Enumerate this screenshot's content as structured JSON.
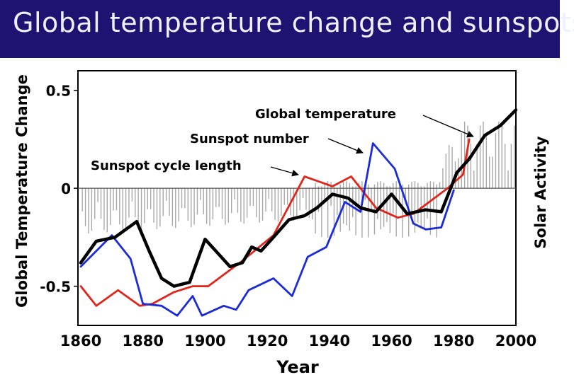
{
  "page": {
    "title": "Global temperature change and sunspots"
  },
  "chart_data": {
    "type": "line",
    "title": "Global temperature change and sunspots",
    "xlabel": "Year",
    "ylabel": "Global Temperature Change",
    "y2label": "Solar Activity",
    "xlim": [
      1860,
      2000
    ],
    "ylim": [
      -0.7,
      0.6
    ],
    "xticks": [
      "1860",
      "1880",
      "1900",
      "1920",
      "1940",
      "1960",
      "1980",
      "2000"
    ],
    "yticks": [
      "0.5",
      "0",
      "-0.5"
    ],
    "ytick_values": [
      0.5,
      0,
      -0.5
    ],
    "series": [
      {
        "name": "Sunspot cycle length",
        "color": "#e0251b",
        "x": [
          1860,
          1865,
          1872,
          1879,
          1883,
          1890,
          1896,
          1901,
          1912,
          1922,
          1932,
          1941,
          1947,
          1955,
          1962,
          1967,
          1978,
          1983,
          1985
        ],
        "y": [
          -0.5,
          -0.6,
          -0.52,
          -0.6,
          -0.59,
          -0.53,
          -0.5,
          -0.5,
          -0.37,
          -0.24,
          0.06,
          0.01,
          0.06,
          -0.1,
          -0.15,
          -0.13,
          0.0,
          0.07,
          0.25
        ]
      },
      {
        "name": "Sunspot number",
        "color": "#1b2bd8",
        "x": [
          1860,
          1870,
          1876,
          1880,
          1886,
          1891,
          1896,
          1899,
          1906,
          1910,
          1914,
          1922,
          1928,
          1933,
          1939,
          1945,
          1950,
          1954,
          1961,
          1967,
          1971,
          1976,
          1980
        ],
        "y": [
          -0.4,
          -0.24,
          -0.36,
          -0.59,
          -0.6,
          -0.65,
          -0.55,
          -0.65,
          -0.6,
          -0.62,
          -0.52,
          -0.46,
          -0.55,
          -0.35,
          -0.3,
          -0.07,
          -0.12,
          0.23,
          0.1,
          -0.18,
          -0.21,
          -0.2,
          -0.01
        ]
      },
      {
        "name": "Global temperature",
        "color": "#000000",
        "x": [
          1860,
          1865,
          1871,
          1878,
          1882,
          1886,
          1890,
          1895,
          1900,
          1904,
          1908,
          1912,
          1915,
          1918,
          1922,
          1927,
          1932,
          1936,
          1941,
          1946,
          1950,
          1955,
          1960,
          1965,
          1971,
          1976,
          1981,
          1985,
          1990,
          1995,
          2000
        ],
        "y": [
          -0.38,
          -0.27,
          -0.25,
          -0.17,
          -0.32,
          -0.46,
          -0.5,
          -0.48,
          -0.26,
          -0.33,
          -0.4,
          -0.38,
          -0.3,
          -0.32,
          -0.25,
          -0.16,
          -0.14,
          -0.1,
          -0.03,
          -0.05,
          -0.1,
          -0.12,
          -0.03,
          -0.13,
          -0.11,
          -0.12,
          0.08,
          0.15,
          0.27,
          0.32,
          0.4
        ]
      }
    ],
    "annotations": [
      {
        "text": "Global temperature",
        "points_to": "Global temperature"
      },
      {
        "text": "Sunspot number",
        "points_to": "Sunspot number"
      },
      {
        "text": "Sunspot cycle length",
        "points_to": "Sunspot cycle length"
      }
    ]
  },
  "colors": {
    "title_bar": "#1c1470",
    "title_text": "#eef0ff",
    "sunspot_bars": "#a8a8a8"
  }
}
